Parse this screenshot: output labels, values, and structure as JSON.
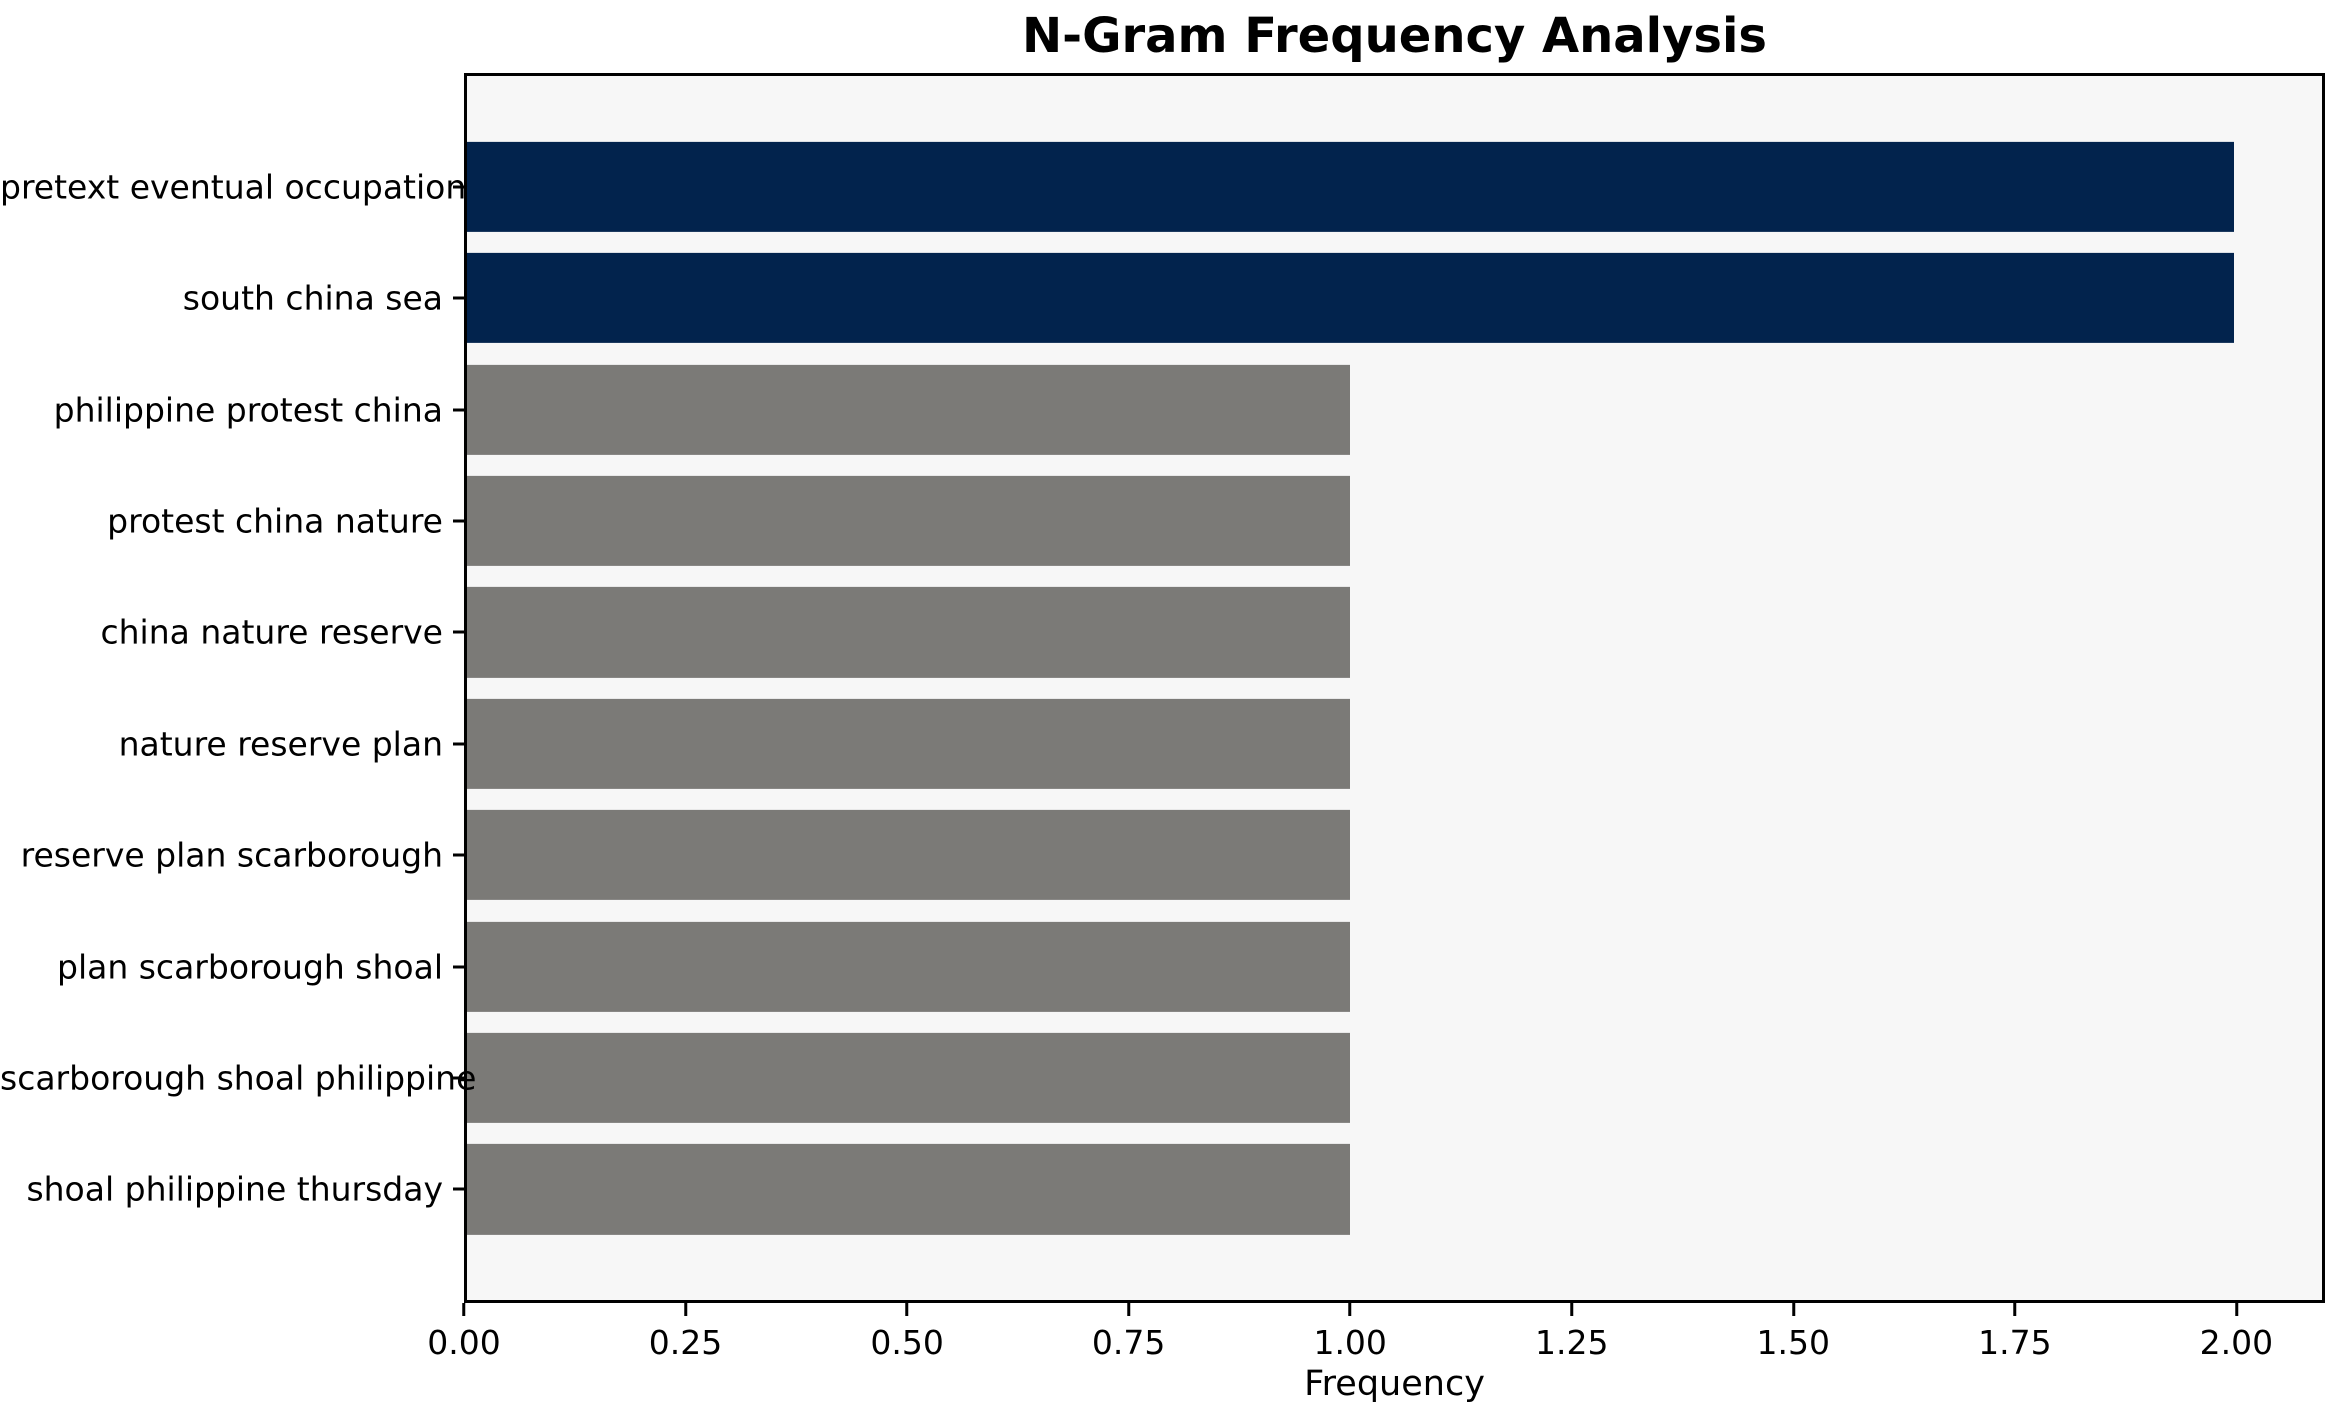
{
  "chart_data": {
    "type": "bar",
    "orientation": "horizontal",
    "title": "N-Gram Frequency Analysis",
    "xlabel": "Frequency",
    "ylabel": "",
    "categories": [
      "pretext eventual occupation",
      "south china sea",
      "philippine protest china",
      "protest china nature",
      "china nature reserve",
      "nature reserve plan",
      "reserve plan scarborough",
      "plan scarborough shoal",
      "scarborough shoal philippine",
      "shoal philippine thursday"
    ],
    "values": [
      2,
      2,
      1,
      1,
      1,
      1,
      1,
      1,
      1,
      1
    ],
    "bar_styles": [
      "highlight",
      "highlight",
      "default",
      "default",
      "default",
      "default",
      "default",
      "default",
      "default",
      "default"
    ],
    "xlim": [
      0,
      2.1
    ],
    "xtick_labels": [
      "0.00",
      "0.25",
      "0.50",
      "0.75",
      "1.00",
      "1.25",
      "1.50",
      "1.75",
      "2.00"
    ],
    "xtick_values": [
      0,
      0.25,
      0.5,
      0.75,
      1.0,
      1.25,
      1.5,
      1.75,
      2.0
    ],
    "grid": false,
    "legend": "none",
    "colors": {
      "highlight_bar": "#02234d",
      "default_bar": "#7b7a77",
      "plot_background": "#f7f7f7",
      "figure_background": "#ffffff",
      "spine": "#000000",
      "text": "#000000"
    }
  }
}
